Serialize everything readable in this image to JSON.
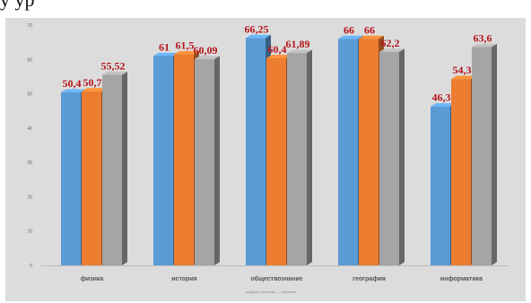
{
  "header": {
    "title_fragment": "у                    ур"
  },
  "chart_data": {
    "type": "bar",
    "categories": [
      "физика",
      "история",
      "обществознание",
      "география",
      "информатика"
    ],
    "series": [
      {
        "values": [
          50.4,
          61,
          66.25,
          66,
          46.3
        ],
        "labels": [
          "50,4",
          "61",
          "66,25",
          "66",
          "46,3"
        ],
        "color": "#5b9bd5"
      },
      {
        "values": [
          50.7,
          61.5,
          60.4,
          66,
          54.3
        ],
        "labels": [
          "50,7",
          "61,5",
          "60,4",
          "66",
          "54,3"
        ],
        "color": "#ed7d31"
      },
      {
        "values": [
          55.52,
          60.09,
          61.89,
          62.2,
          63.6
        ],
        "labels": [
          "55,52",
          "60,09",
          "61,89",
          "62,2",
          "63,6"
        ],
        "color": "#a5a5a5"
      }
    ],
    "ylim": [
      0,
      70
    ],
    "yticks": [
      "0",
      "10",
      "20",
      "30",
      "40",
      "50",
      "60",
      "70"
    ],
    "legend_text": "среднее значение — значение",
    "legend_position": "bottom",
    "grid": false
  }
}
